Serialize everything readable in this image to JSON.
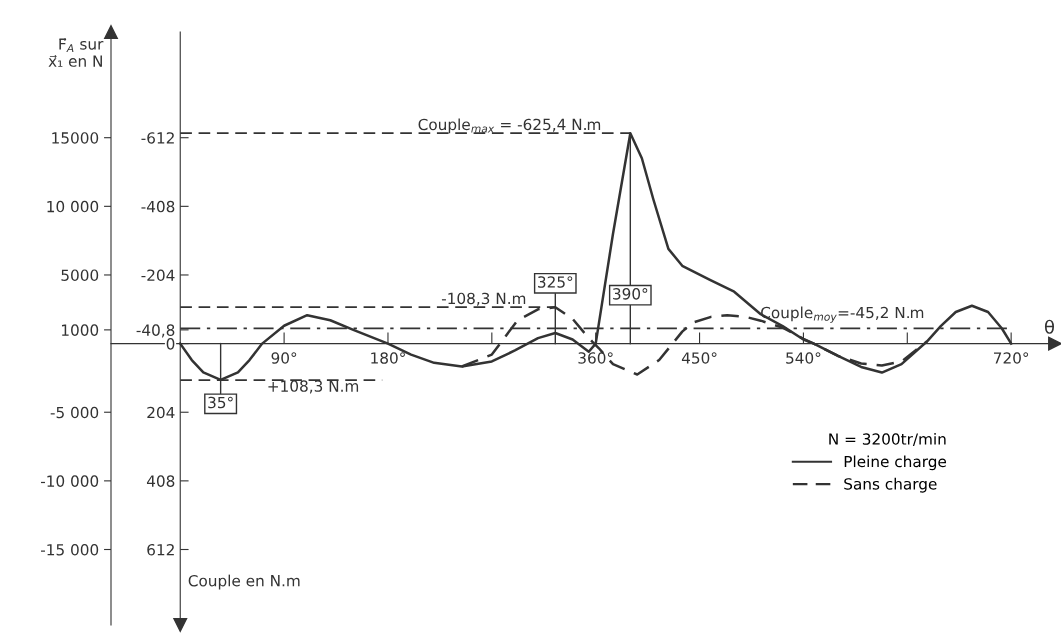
{
  "chart_data": {
    "type": "line",
    "ylabel": "F⃗$_{A}$ sur\nx⃗₁ en N",
    "y2label": "Couple en N.m",
    "xlabel": "θ",
    "legend_title": "N = 3200tr/min",
    "xlim": [
      -60,
      758
    ],
    "xticks": [
      {
        "value": 90,
        "label": "90°"
      },
      {
        "value": 180,
        "label": "180°"
      },
      {
        "value": 270,
        "label": null
      },
      {
        "value": 360,
        "label": "360°"
      },
      {
        "value": 450,
        "label": "450°"
      },
      {
        "value": 540,
        "label": "540°"
      },
      {
        "value": 630,
        "label": null
      },
      {
        "value": 720,
        "label": "720°"
      }
    ],
    "ylim": [
      -20500,
      22700
    ],
    "yticks": [
      {
        "value": 15000,
        "label": "15000"
      },
      {
        "value": 10000,
        "label": "10 000"
      },
      {
        "value": 5000,
        "label": "5000"
      },
      {
        "value": 1000,
        "label": "1000"
      },
      {
        "value": -5000,
        "label": "-5 000"
      },
      {
        "value": -10000,
        "label": "-10 000"
      },
      {
        "value": -15000,
        "label": "-15 000"
      }
    ],
    "y2lim": [
      836.4,
      -926.2
    ],
    "y2ticks": [
      {
        "value": -612,
        "label": "-612"
      },
      {
        "value": -408,
        "label": "-408"
      },
      {
        "value": -204,
        "label": "-204"
      },
      {
        "value": -40.8,
        "label": "-40,8"
      },
      0,
      204,
      408,
      612
    ],
    "grid": false,
    "legend": "bottom right",
    "series": [
      {
        "name": "Pleine charge",
        "color": "#333333",
        "line_style": "solid",
        "x": [
          0,
          10,
          20,
          35,
          50,
          60,
          71,
          90,
          110,
          130,
          150,
          180,
          200,
          220,
          244,
          270,
          290,
          310,
          325,
          340,
          354,
          360,
          375,
          390,
          400,
          410,
          423,
          435,
          459,
          480,
          503,
          522,
          540,
          549,
          570,
          590,
          608,
          625,
          647,
          659,
          672,
          686,
          700,
          712,
          720
        ],
        "values": [
          0,
          -1200,
          -2100,
          -2650,
          -2100,
          -1200,
          0,
          1300,
          2070,
          1700,
          1000,
          0,
          -800,
          -1400,
          -1670,
          -1300,
          -500,
          400,
          770,
          300,
          -590,
          0,
          8000,
          15330,
          13500,
          10500,
          6900,
          5670,
          4650,
          3780,
          2140,
          1270,
          300,
          0,
          -900,
          -1700,
          -2110,
          -1500,
          150,
          1270,
          2300,
          2760,
          2300,
          1100,
          0
        ]
      },
      {
        "name": "Sans charge",
        "color": "#333333",
        "line_style": "dashed",
        "x": [
          244,
          270,
          292,
          310,
          325,
          340,
          350,
          357,
          363,
          375,
          396,
          415,
          435,
          444,
          460,
          474,
          490,
          503,
          522,
          540,
          549,
          570,
          590,
          608,
          625,
          647
        ],
        "values": [
          -1670,
          -800,
          1670,
          2500,
          2650,
          1800,
          800,
          150,
          -360,
          -1500,
          -2250,
          -1200,
          870,
          1530,
          1950,
          2070,
          1950,
          1670,
          1160,
          350,
          0,
          -900,
          -1450,
          -1600,
          -1300,
          150
        ]
      }
    ],
    "ref_lines": [
      {
        "axis": "y2",
        "value": -625.4,
        "label": "Couple$_{max}$ = -625,4 N.m",
        "line_style": "dashed"
      },
      {
        "axis": "y2",
        "value": -108.3,
        "label": "-108,3 N.m",
        "line_style": "dashed"
      },
      {
        "axis": "y2",
        "value": 108.3,
        "label": "+108,3 N.m",
        "line_style": "dashed"
      },
      {
        "axis": "y2",
        "value": -45.2,
        "label": "Couple$_{moy}$=-45,2 N.m",
        "line_style": "dashdot"
      }
    ],
    "annotations": [
      {
        "text": "35°",
        "x": 35,
        "y": -2650
      },
      {
        "text": "325°",
        "x": 325,
        "y": 2650
      },
      {
        "text": "390°",
        "x": 390,
        "y": 15330
      }
    ]
  }
}
